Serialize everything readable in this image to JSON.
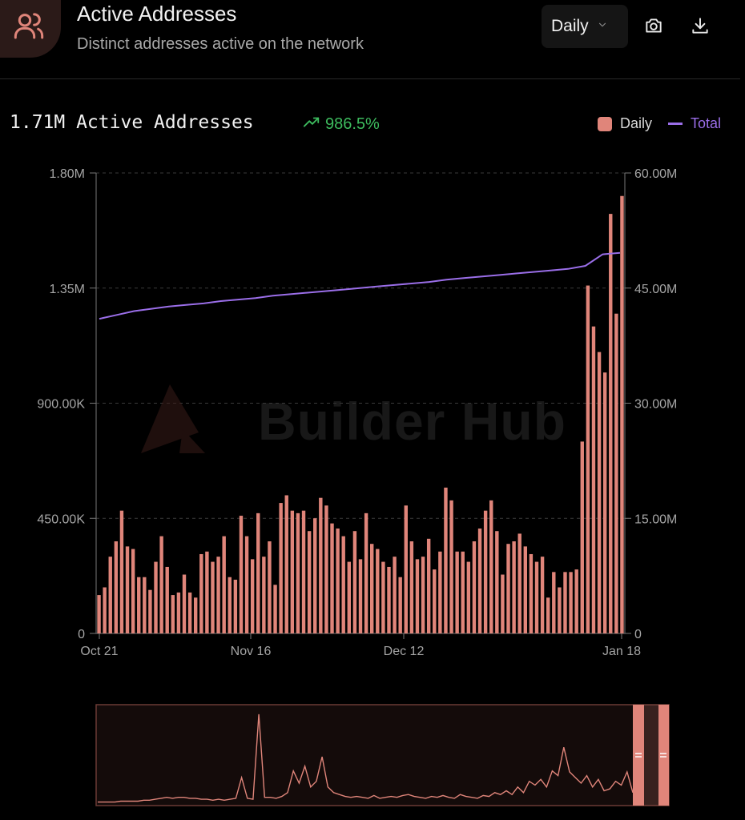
{
  "header": {
    "title": "Active Addresses",
    "subtitle": "Distinct addresses active on the network",
    "period_label": "Daily",
    "camera_icon": "camera-icon",
    "download_icon": "download-icon",
    "users_icon": "users-icon"
  },
  "summary": {
    "value_text": "1.71M Active Addresses",
    "change_text": "986.5%",
    "change_color": "#3dbb5e"
  },
  "legend": {
    "daily": "Daily",
    "total": "Total"
  },
  "watermark": {
    "text": "Builder Hub"
  },
  "colors": {
    "bar": "#e0857a",
    "line": "#9a6ee8",
    "positive": "#3dbb5e",
    "background": "#000000"
  },
  "chart_data": {
    "type": "bar",
    "grid": true,
    "legend_position": "top-right",
    "x_ticks": [
      "Oct 21",
      "Nov 16",
      "Dec 12",
      "Jan 18"
    ],
    "y_left": {
      "ticks": [
        "0",
        "450.00K",
        "900.00K",
        "1.35M",
        "1.80M"
      ],
      "range": [
        0,
        1800000
      ]
    },
    "y_right": {
      "ticks": [
        "0",
        "15.00M",
        "30.00M",
        "45.00M",
        "60.00M"
      ],
      "range": [
        0,
        60000000
      ]
    },
    "series": [
      {
        "name": "Daily",
        "type": "bar",
        "axis": "left",
        "values": [
          150000,
          180000,
          300000,
          360000,
          480000,
          340000,
          330000,
          220000,
          220000,
          170000,
          280000,
          380000,
          260000,
          150000,
          160000,
          230000,
          160000,
          140000,
          310000,
          320000,
          280000,
          300000,
          380000,
          220000,
          210000,
          460000,
          380000,
          290000,
          470000,
          300000,
          360000,
          190000,
          510000,
          540000,
          480000,
          470000,
          480000,
          400000,
          450000,
          530000,
          500000,
          430000,
          410000,
          380000,
          280000,
          400000,
          290000,
          470000,
          350000,
          330000,
          280000,
          260000,
          300000,
          220000,
          500000,
          360000,
          290000,
          300000,
          370000,
          250000,
          320000,
          570000,
          520000,
          320000,
          320000,
          280000,
          360000,
          410000,
          480000,
          520000,
          400000,
          230000,
          350000,
          360000,
          390000,
          340000,
          310000,
          280000,
          300000,
          140000,
          240000,
          180000,
          240000,
          240000,
          250000,
          750000,
          1360000,
          1200000,
          1100000,
          1020000,
          1640000,
          1250000,
          1710000
        ]
      },
      {
        "name": "Total",
        "type": "line",
        "axis": "right",
        "values": [
          41000000,
          41500000,
          42000000,
          42300000,
          42600000,
          42800000,
          43000000,
          43300000,
          43500000,
          43700000,
          44000000,
          44200000,
          44400000,
          44600000,
          44800000,
          45000000,
          45200000,
          45400000,
          45600000,
          45800000,
          46100000,
          46300000,
          46500000,
          46700000,
          46900000,
          47100000,
          47300000,
          47500000,
          47900000,
          49400000,
          49600000
        ]
      }
    ],
    "brush_series": [
      0.02,
      0.02,
      0.02,
      0.02,
      0.03,
      0.03,
      0.03,
      0.03,
      0.04,
      0.04,
      0.05,
      0.06,
      0.07,
      0.06,
      0.07,
      0.07,
      0.06,
      0.06,
      0.05,
      0.05,
      0.04,
      0.05,
      0.04,
      0.05,
      0.06,
      0.28,
      0.06,
      0.05,
      0.95,
      0.07,
      0.07,
      0.06,
      0.08,
      0.12,
      0.35,
      0.22,
      0.4,
      0.18,
      0.24,
      0.5,
      0.18,
      0.12,
      0.1,
      0.08,
      0.07,
      0.08,
      0.07,
      0.06,
      0.09,
      0.06,
      0.07,
      0.08,
      0.07,
      0.09,
      0.1,
      0.08,
      0.07,
      0.06,
      0.08,
      0.07,
      0.09,
      0.07,
      0.06,
      0.1,
      0.08,
      0.07,
      0.06,
      0.09,
      0.08,
      0.12,
      0.1,
      0.14,
      0.1,
      0.18,
      0.12,
      0.24,
      0.2,
      0.26,
      0.18,
      0.35,
      0.3,
      0.6,
      0.34,
      0.28,
      0.22,
      0.3,
      0.18,
      0.26,
      0.14,
      0.16,
      0.24,
      0.2,
      0.34,
      0.12
    ]
  }
}
